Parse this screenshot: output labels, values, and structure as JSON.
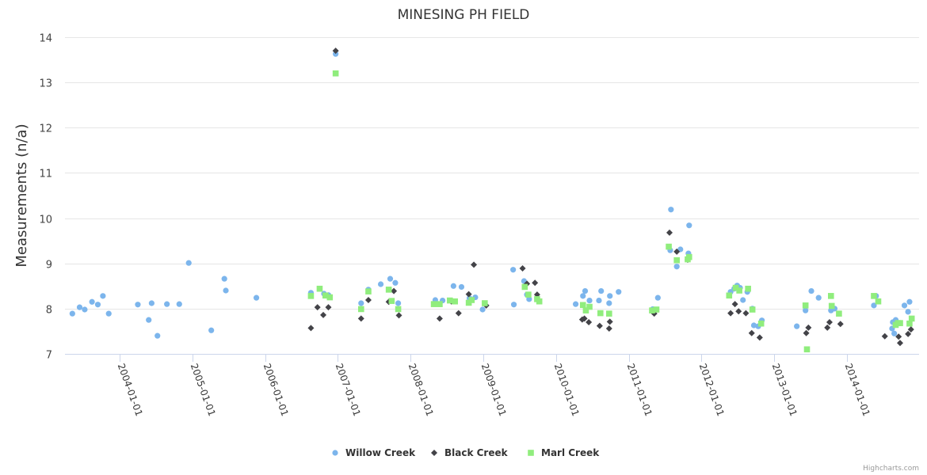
{
  "chart_data": {
    "type": "scatter",
    "title": "MINESING PH FIELD",
    "xlabel": "",
    "ylabel": "Measurements (n/a)",
    "ylim": [
      7,
      14
    ],
    "yticks": [
      "7",
      "8",
      "9",
      "10",
      "11",
      "12",
      "13",
      "14"
    ],
    "xlim": [
      2003.2,
      2015.0
    ],
    "xticks": [
      {
        "label": "2004-01-01",
        "value": 2004
      },
      {
        "label": "2005-01-01",
        "value": 2005
      },
      {
        "label": "2006-01-01",
        "value": 2006
      },
      {
        "label": "2007-01-01",
        "value": 2007
      },
      {
        "label": "2008-01-01",
        "value": 2008
      },
      {
        "label": "2009-01-01",
        "value": 2009
      },
      {
        "label": "2010-01-01",
        "value": 2010
      },
      {
        "label": "2011-01-01",
        "value": 2011
      },
      {
        "label": "2012-01-01",
        "value": 2012
      },
      {
        "label": "2013-01-01",
        "value": 2013
      },
      {
        "label": "2014-01-01",
        "value": 2014
      }
    ],
    "grid": true,
    "legend_position": "bottom-center",
    "credits": "Highcharts.com",
    "series": [
      {
        "name": "Willow Creek",
        "color": "#7cb5ec",
        "marker": "circle",
        "points": [
          [
            2003.35,
            7.89
          ],
          [
            2003.45,
            8.03
          ],
          [
            2003.52,
            7.98
          ],
          [
            2003.62,
            8.15
          ],
          [
            2003.7,
            8.09
          ],
          [
            2003.77,
            8.28
          ],
          [
            2003.85,
            7.89
          ],
          [
            2004.25,
            8.09
          ],
          [
            2004.4,
            7.75
          ],
          [
            2004.44,
            8.12
          ],
          [
            2004.52,
            7.4
          ],
          [
            2004.65,
            8.1
          ],
          [
            2004.82,
            8.1
          ],
          [
            2004.95,
            9.01
          ],
          [
            2005.26,
            7.52
          ],
          [
            2005.44,
            8.66
          ],
          [
            2005.46,
            8.4
          ],
          [
            2005.88,
            8.24
          ],
          [
            2006.63,
            8.35
          ],
          [
            2006.81,
            8.33
          ],
          [
            2006.87,
            8.3
          ],
          [
            2006.97,
            13.63
          ],
          [
            2007.32,
            8.12
          ],
          [
            2007.42,
            8.42
          ],
          [
            2007.59,
            8.54
          ],
          [
            2007.72,
            8.66
          ],
          [
            2007.79,
            8.57
          ],
          [
            2007.83,
            8.12
          ],
          [
            2008.34,
            8.19
          ],
          [
            2008.44,
            8.18
          ],
          [
            2008.59,
            8.5
          ],
          [
            2008.7,
            8.48
          ],
          [
            2008.81,
            8.23
          ],
          [
            2008.89,
            8.25
          ],
          [
            2008.99,
            7.98
          ],
          [
            2009.41,
            8.86
          ],
          [
            2009.42,
            8.09
          ],
          [
            2009.56,
            8.61
          ],
          [
            2009.6,
            8.31
          ],
          [
            2009.63,
            8.21
          ],
          [
            2010.27,
            8.1
          ],
          [
            2010.37,
            8.28
          ],
          [
            2010.4,
            8.39
          ],
          [
            2010.46,
            8.18
          ],
          [
            2010.59,
            8.18
          ],
          [
            2010.62,
            8.39
          ],
          [
            2010.73,
            8.12
          ],
          [
            2010.74,
            8.28
          ],
          [
            2010.86,
            8.37
          ],
          [
            2011.33,
            7.99
          ],
          [
            2011.4,
            8.24
          ],
          [
            2011.58,
            10.19
          ],
          [
            2011.57,
            9.29
          ],
          [
            2011.66,
            8.93
          ],
          [
            2011.71,
            9.31
          ],
          [
            2011.83,
            9.84
          ],
          [
            2011.82,
            9.22
          ],
          [
            2012.4,
            8.37
          ],
          [
            2012.45,
            8.44
          ],
          [
            2012.49,
            8.51
          ],
          [
            2012.53,
            8.46
          ],
          [
            2012.57,
            8.19
          ],
          [
            2012.63,
            8.37
          ],
          [
            2012.7,
            8.0
          ],
          [
            2012.72,
            7.63
          ],
          [
            2012.78,
            7.61
          ],
          [
            2012.83,
            7.74
          ],
          [
            2013.31,
            7.61
          ],
          [
            2013.43,
            7.96
          ],
          [
            2013.51,
            8.39
          ],
          [
            2013.61,
            8.24
          ],
          [
            2013.78,
            7.96
          ],
          [
            2013.83,
            8.0
          ],
          [
            2014.37,
            8.07
          ],
          [
            2014.4,
            8.28
          ],
          [
            2014.62,
            7.56
          ],
          [
            2014.63,
            7.7
          ],
          [
            2014.65,
            7.45
          ],
          [
            2014.67,
            7.75
          ],
          [
            2014.79,
            8.07
          ],
          [
            2014.84,
            7.93
          ],
          [
            2014.86,
            8.15
          ]
        ]
      },
      {
        "name": "Black Creek",
        "color": "#434348",
        "marker": "diamond",
        "points": [
          [
            2006.63,
            7.57
          ],
          [
            2006.72,
            8.03
          ],
          [
            2006.8,
            7.86
          ],
          [
            2006.87,
            8.03
          ],
          [
            2006.97,
            13.7
          ],
          [
            2007.32,
            7.78
          ],
          [
            2007.42,
            8.19
          ],
          [
            2007.7,
            8.15
          ],
          [
            2007.77,
            8.39
          ],
          [
            2007.84,
            7.85
          ],
          [
            2008.4,
            7.78
          ],
          [
            2008.56,
            8.16
          ],
          [
            2008.66,
            7.9
          ],
          [
            2008.8,
            8.32
          ],
          [
            2008.87,
            8.97
          ],
          [
            2009.04,
            8.07
          ],
          [
            2009.54,
            8.89
          ],
          [
            2009.6,
            8.55
          ],
          [
            2009.71,
            8.57
          ],
          [
            2009.74,
            8.31
          ],
          [
            2010.36,
            7.76
          ],
          [
            2010.39,
            7.78
          ],
          [
            2010.45,
            7.7
          ],
          [
            2010.6,
            7.62
          ],
          [
            2010.73,
            7.56
          ],
          [
            2010.74,
            7.71
          ],
          [
            2011.35,
            7.89
          ],
          [
            2011.56,
            9.68
          ],
          [
            2011.66,
            9.26
          ],
          [
            2011.81,
            9.08
          ],
          [
            2012.4,
            7.9
          ],
          [
            2012.46,
            8.1
          ],
          [
            2012.51,
            7.94
          ],
          [
            2012.61,
            7.9
          ],
          [
            2012.69,
            7.46
          ],
          [
            2012.8,
            7.36
          ],
          [
            2013.44,
            7.46
          ],
          [
            2013.47,
            7.58
          ],
          [
            2013.73,
            7.58
          ],
          [
            2013.76,
            7.7
          ],
          [
            2013.91,
            7.66
          ],
          [
            2014.52,
            7.39
          ],
          [
            2014.71,
            7.38
          ],
          [
            2014.73,
            7.24
          ],
          [
            2014.84,
            7.44
          ],
          [
            2014.88,
            7.54
          ]
        ]
      },
      {
        "name": "Marl Creek",
        "color": "#90ed7d",
        "marker": "square",
        "points": [
          [
            2006.63,
            8.28
          ],
          [
            2006.75,
            8.44
          ],
          [
            2006.83,
            8.29
          ],
          [
            2006.89,
            8.25
          ],
          [
            2006.97,
            13.2
          ],
          [
            2007.32,
            7.99
          ],
          [
            2007.42,
            8.38
          ],
          [
            2007.7,
            8.42
          ],
          [
            2007.74,
            8.17
          ],
          [
            2007.83,
            7.99
          ],
          [
            2008.32,
            8.1
          ],
          [
            2008.4,
            8.1
          ],
          [
            2008.54,
            8.18
          ],
          [
            2008.61,
            8.16
          ],
          [
            2008.8,
            8.13
          ],
          [
            2008.84,
            8.19
          ],
          [
            2009.02,
            8.12
          ],
          [
            2009.57,
            8.48
          ],
          [
            2009.62,
            8.31
          ],
          [
            2009.74,
            8.21
          ],
          [
            2009.77,
            8.16
          ],
          [
            2010.37,
            8.08
          ],
          [
            2010.41,
            7.96
          ],
          [
            2010.46,
            8.04
          ],
          [
            2010.61,
            7.9
          ],
          [
            2010.73,
            7.89
          ],
          [
            2011.32,
            7.96
          ],
          [
            2011.38,
            7.98
          ],
          [
            2011.55,
            9.37
          ],
          [
            2011.66,
            9.07
          ],
          [
            2011.81,
            9.09
          ],
          [
            2011.83,
            9.14
          ],
          [
            2012.38,
            8.29
          ],
          [
            2012.47,
            8.46
          ],
          [
            2012.52,
            8.4
          ],
          [
            2012.64,
            8.44
          ],
          [
            2012.7,
            7.98
          ],
          [
            2012.82,
            7.67
          ],
          [
            2013.43,
            8.07
          ],
          [
            2013.45,
            7.1
          ],
          [
            2013.78,
            8.28
          ],
          [
            2013.79,
            8.06
          ],
          [
            2013.89,
            7.89
          ],
          [
            2014.37,
            8.28
          ],
          [
            2014.43,
            8.16
          ],
          [
            2014.67,
            7.64
          ],
          [
            2014.7,
            7.68
          ],
          [
            2014.73,
            7.68
          ],
          [
            2014.86,
            7.67
          ],
          [
            2014.89,
            7.78
          ]
        ]
      }
    ]
  }
}
